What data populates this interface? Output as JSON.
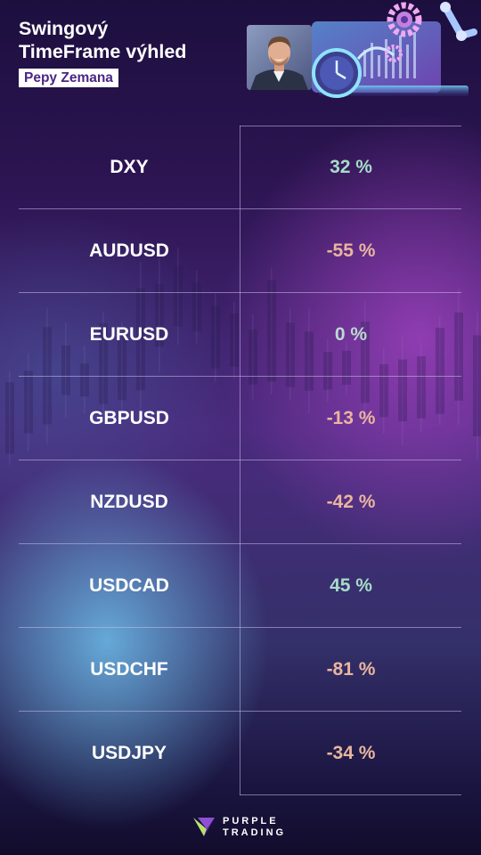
{
  "header": {
    "title_line1": "Swingový",
    "title_line2": "TimeFrame výhled",
    "author": "Pepy Zemana"
  },
  "colors": {
    "positive": "#a6dcc8",
    "negative": "#e9b59f",
    "neutral": "#b9dccd",
    "brand_purple": "#4a2685"
  },
  "rows": [
    {
      "pair": "DXY",
      "value": "32 %",
      "sentiment": "positive"
    },
    {
      "pair": "AUDUSD",
      "value": "-55 %",
      "sentiment": "negative"
    },
    {
      "pair": "EURUSD",
      "value": "0 %",
      "sentiment": "neutral"
    },
    {
      "pair": "GBPUSD",
      "value": "-13 %",
      "sentiment": "negative"
    },
    {
      "pair": "NZDUSD",
      "value": "-42 %",
      "sentiment": "negative"
    },
    {
      "pair": "USDCAD",
      "value": "45 %",
      "sentiment": "positive"
    },
    {
      "pair": "USDCHF",
      "value": "-81 %",
      "sentiment": "negative"
    },
    {
      "pair": "USDJPY",
      "value": "-34 %",
      "sentiment": "negative"
    }
  ],
  "logo": {
    "line1": "PURPLE",
    "line2": "TRADING",
    "icon": "purple-trading-logo-icon"
  },
  "icons": {
    "clock": "clock-icon",
    "gear": "gear-icon",
    "robot_arm": "robot-arm-icon"
  }
}
